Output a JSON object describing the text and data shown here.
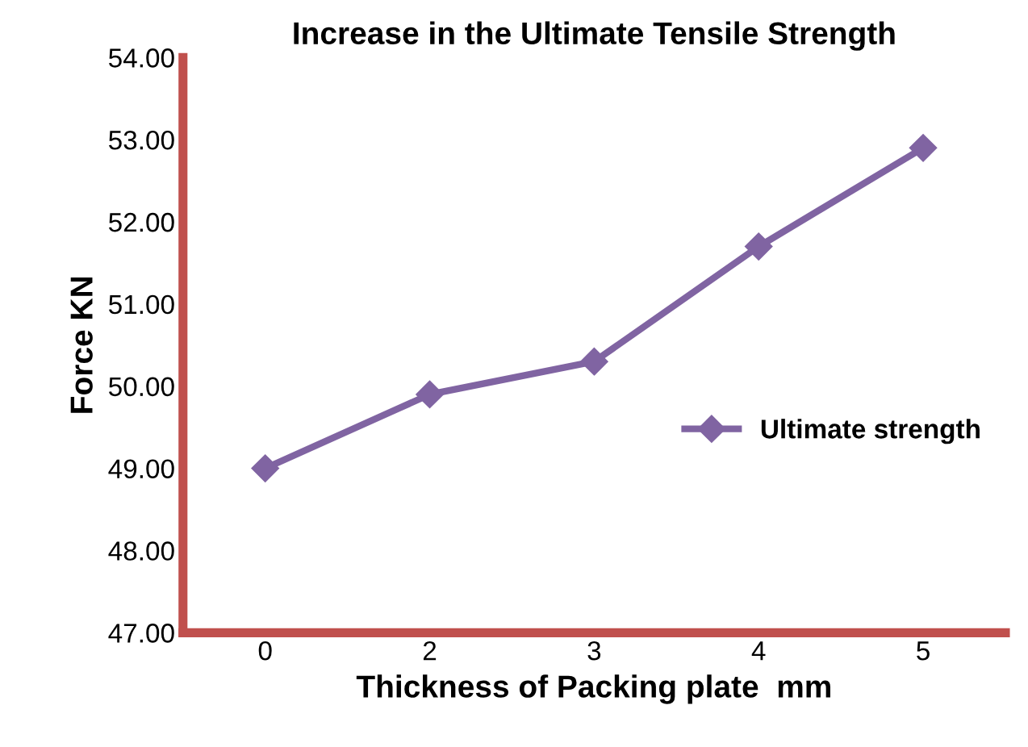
{
  "chart_data": {
    "type": "line",
    "title": "Increase in the Ultimate Tensile Strength",
    "xlabel": "Thickness of Packing plate  mm",
    "ylabel": "Force KN",
    "categories": [
      "0",
      "2",
      "3",
      "4",
      "5"
    ],
    "series": [
      {
        "name": "Ultimate strength",
        "color": "#8064a2",
        "values": [
          49.0,
          49.9,
          50.3,
          51.7,
          52.9
        ]
      }
    ],
    "ylim": [
      47,
      54
    ],
    "yticks": [
      {
        "value": 47,
        "label": "47.00"
      },
      {
        "value": 48,
        "label": "48.00"
      },
      {
        "value": 49,
        "label": "49.00"
      },
      {
        "value": 50,
        "label": "50.00"
      },
      {
        "value": 51,
        "label": "51.00"
      },
      {
        "value": 52,
        "label": "52.00"
      },
      {
        "value": 53,
        "label": "53.00"
      },
      {
        "value": 54,
        "label": "54.00"
      }
    ],
    "marker": "diamond",
    "line_style": "solid",
    "legend": "right",
    "grid": false
  }
}
